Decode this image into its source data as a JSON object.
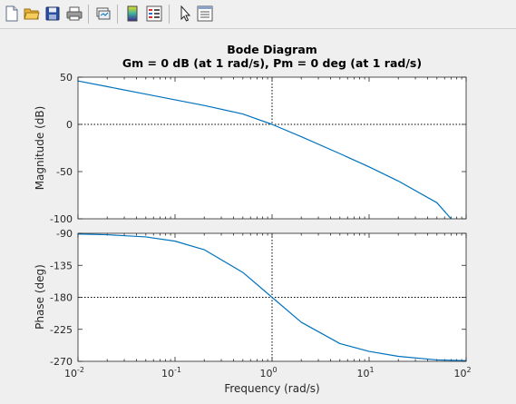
{
  "toolbar": {
    "icons": [
      "new-figure-icon",
      "open-file-icon",
      "save-icon",
      "print-icon",
      "link-plot-icon",
      "insert-colorbar-icon",
      "insert-legend-icon",
      "edit-plot-arrow-icon",
      "property-inspector-icon"
    ]
  },
  "chart_data": {
    "type": "line",
    "title": "Bode Diagram",
    "subtitle": "Gm = 0 dB (at 1 rad/s),  Pm = 0 deg (at 1 rad/s)",
    "xlabel": "Frequency  (rad/s)",
    "xscale": "log",
    "xlim": [
      0.01,
      100
    ],
    "x_ticks": [
      {
        "base": "10",
        "exp": "-2"
      },
      {
        "base": "10",
        "exp": "-1"
      },
      {
        "base": "10",
        "exp": "0"
      },
      {
        "base": "10",
        "exp": "1"
      },
      {
        "base": "10",
        "exp": "2"
      }
    ],
    "line_color": "#0072bd",
    "grid": false,
    "reference_lines": {
      "frequency": 1,
      "magnitude_db": 0,
      "phase_deg": -180
    },
    "magnitude": {
      "ylabel": "Magnitude (dB)",
      "ylim": [
        -100,
        50
      ],
      "yticks": [
        "50",
        "0",
        "-50",
        "-100"
      ],
      "x": [
        0.01,
        0.02,
        0.05,
        0.1,
        0.2,
        0.5,
        1,
        2,
        5,
        10,
        20,
        50,
        70
      ],
      "y": [
        46,
        40,
        32,
        26,
        20,
        11,
        0,
        -13,
        -31,
        -45,
        -60,
        -83,
        -100
      ]
    },
    "phase": {
      "ylabel": "Phase (deg)",
      "ylim": [
        -270,
        -90
      ],
      "yticks": [
        "-90",
        "-135",
        "-180",
        "-225",
        "-270"
      ],
      "x": [
        0.01,
        0.02,
        0.05,
        0.1,
        0.2,
        0.5,
        1,
        2,
        5,
        10,
        20,
        50,
        100
      ],
      "y": [
        -91,
        -92,
        -95,
        -101,
        -113,
        -145,
        -180,
        -215,
        -245,
        -256,
        -263,
        -268,
        -269
      ]
    }
  }
}
